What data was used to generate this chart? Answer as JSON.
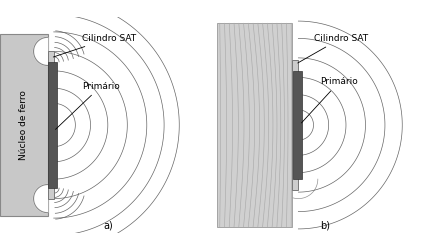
{
  "bg_color": "#ffffff",
  "iron_color_a": "#c8c8c8",
  "iron_color_b": "#d0d0d0",
  "sat_color": "#b8b8b8",
  "primary_dark": "#555555",
  "primary_mid": "#888888",
  "field_color": "#666666",
  "label_cilindro_sat": "Cilindro SAT",
  "label_primario": "Primário",
  "label_nucleo": "Núcleo de ferro",
  "label_a": "a)",
  "label_b": "b)",
  "fs": 6.5
}
